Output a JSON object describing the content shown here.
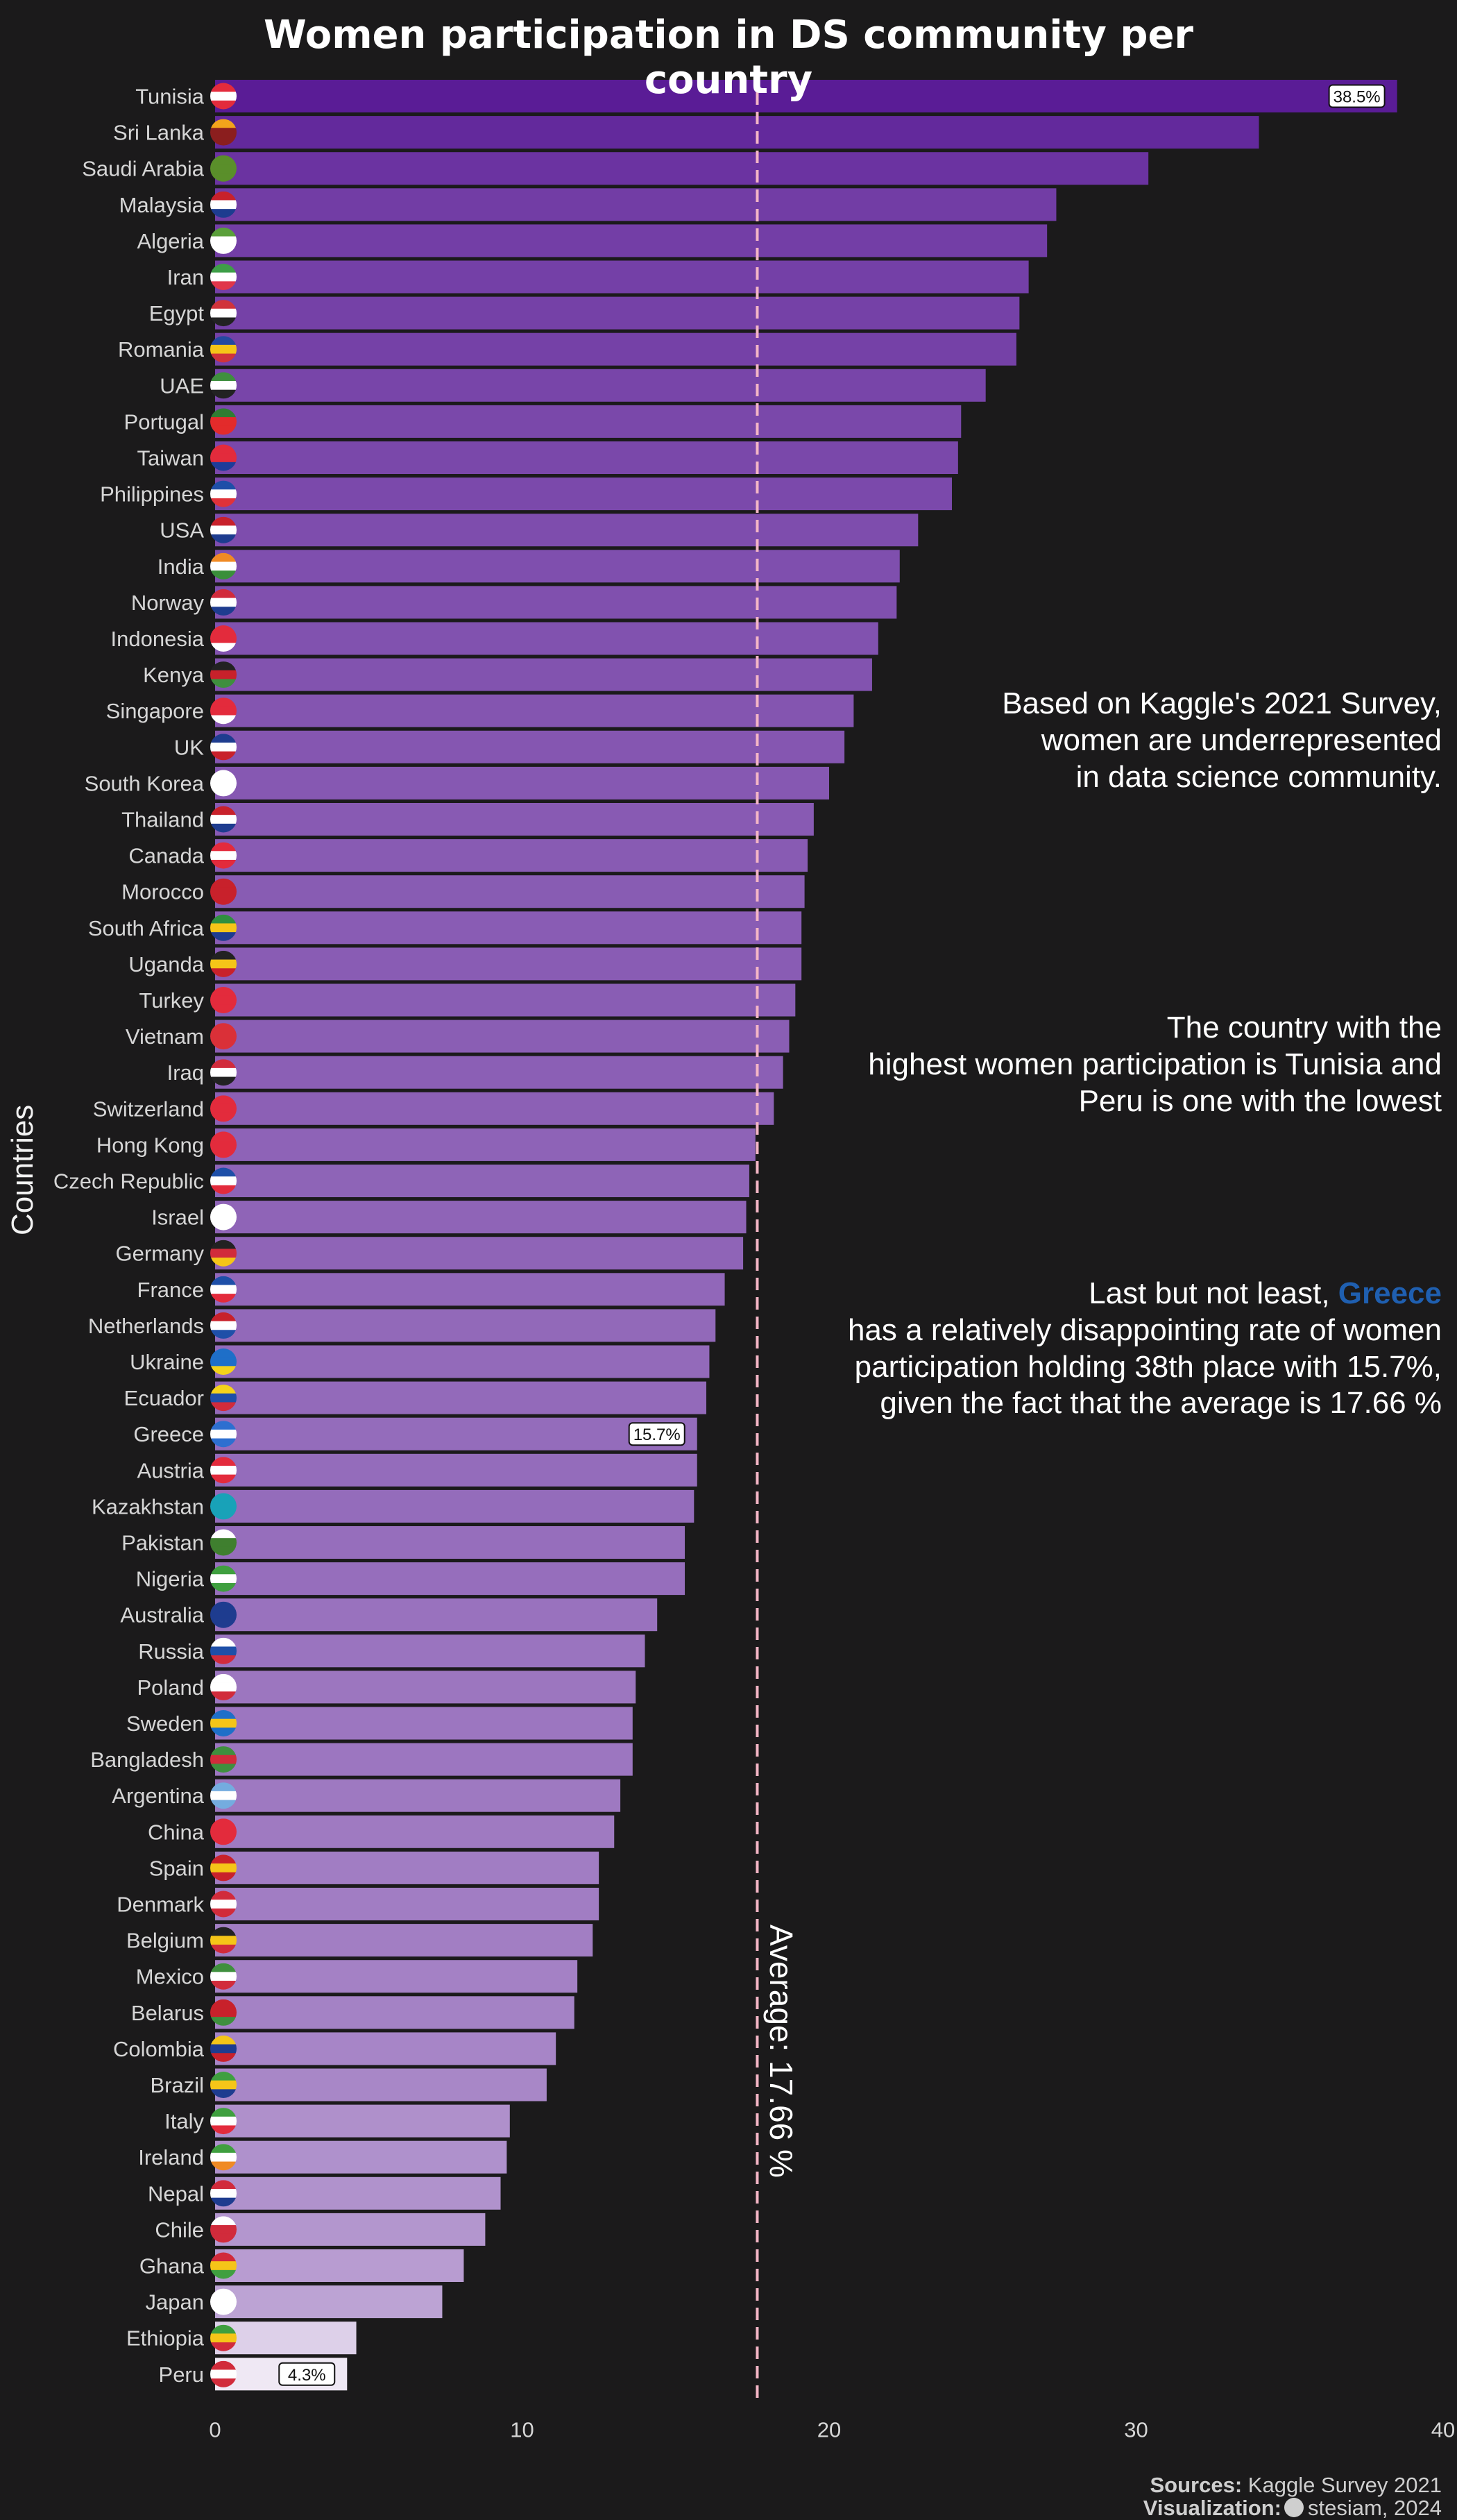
{
  "chart_data": {
    "type": "bar",
    "orientation": "horizontal",
    "title": "Women participation in DS community per country",
    "xlabel": "",
    "ylabel": "Countries",
    "xlim": [
      0,
      40
    ],
    "xticks": [
      0,
      10,
      20,
      30,
      40
    ],
    "grid": false,
    "categories": [
      "Tunisia",
      "Sri Lanka",
      "Saudi Arabia",
      "Malaysia",
      "Algeria",
      "Iran",
      "Egypt",
      "Romania",
      "UAE",
      "Portugal",
      "Taiwan",
      "Philippines",
      "USA",
      "India",
      "Norway",
      "Indonesia",
      "Kenya",
      "Singapore",
      "UK",
      "South Korea",
      "Thailand",
      "Canada",
      "Morocco",
      "South Africa",
      "Uganda",
      "Turkey",
      "Vietnam",
      "Iraq",
      "Switzerland",
      "Hong Kong",
      "Czech Republic",
      "Israel",
      "Germany",
      "France",
      "Netherlands",
      "Ukraine",
      "Ecuador",
      "Greece",
      "Austria",
      "Kazakhstan",
      "Pakistan",
      "Nigeria",
      "Australia",
      "Russia",
      "Poland",
      "Sweden",
      "Bangladesh",
      "Argentina",
      "China",
      "Spain",
      "Denmark",
      "Belgium",
      "Mexico",
      "Belarus",
      "Colombia",
      "Brazil",
      "Italy",
      "Ireland",
      "Nepal",
      "Chile",
      "Ghana",
      "Japan",
      "Ethiopia",
      "Peru"
    ],
    "values": [
      38.5,
      34.0,
      30.4,
      27.4,
      27.1,
      26.5,
      26.2,
      26.1,
      25.1,
      24.3,
      24.2,
      24.0,
      22.9,
      22.3,
      22.2,
      21.6,
      21.4,
      20.8,
      20.5,
      20.0,
      19.5,
      19.3,
      19.2,
      19.1,
      19.1,
      18.9,
      18.7,
      18.5,
      18.2,
      17.6,
      17.4,
      17.3,
      17.2,
      16.6,
      16.3,
      16.1,
      16.0,
      15.7,
      15.7,
      15.6,
      15.3,
      15.3,
      14.4,
      14.0,
      13.7,
      13.6,
      13.6,
      13.2,
      13.0,
      12.5,
      12.5,
      12.3,
      11.8,
      11.7,
      11.1,
      10.8,
      9.6,
      9.5,
      9.3,
      8.8,
      8.1,
      7.4,
      4.6,
      4.3
    ],
    "value_labels": {
      "Tunisia": "38.5%",
      "Greece": "15.7%",
      "Peru": "4.3%"
    },
    "average": 17.66,
    "average_label": "Average: 17.66 %",
    "flags": [
      [
        "#e32b3c",
        "#ffffff",
        "#e32b3c"
      ],
      [
        "#f2a41b",
        "#8b1e1e",
        "#8b1e1e"
      ],
      [
        "#5a8f2a",
        "#5a8f2a",
        "#5a8f2a"
      ],
      [
        "#c8212b",
        "#ffffff",
        "#1d3c8f"
      ],
      [
        "#5a9f3a",
        "#ffffff",
        "#ffffff"
      ],
      [
        "#3e9e48",
        "#ffffff",
        "#e0364a"
      ],
      [
        "#d0333b",
        "#ffffff",
        "#222222"
      ],
      [
        "#2449a0",
        "#f5c518",
        "#d0333b"
      ],
      [
        "#3f8f3e",
        "#ffffff",
        "#222222"
      ],
      [
        "#2f7d32",
        "#e32b2b",
        "#e32b2b"
      ],
      [
        "#e32b3c",
        "#e32b3c",
        "#1e3c9a"
      ],
      [
        "#1e4fa8",
        "#ffffff",
        "#e0323a"
      ],
      [
        "#c8212b",
        "#ffffff",
        "#1d3c8f"
      ],
      [
        "#f08a24",
        "#ffffff",
        "#3a8f3a"
      ],
      [
        "#d12b3b",
        "#ffffff",
        "#1e3c8f"
      ],
      [
        "#e32b3c",
        "#e32b3c",
        "#ffffff"
      ],
      [
        "#222222",
        "#c8212b",
        "#3f8f3e"
      ],
      [
        "#e32b3c",
        "#e32b3c",
        "#ffffff"
      ],
      [
        "#1e3c8f",
        "#ffffff",
        "#c8212b"
      ],
      [
        "#ffffff",
        "#ffffff",
        "#ffffff"
      ],
      [
        "#c8212b",
        "#ffffff",
        "#1e3c8f"
      ],
      [
        "#e32b3c",
        "#ffffff",
        "#e32b3c"
      ],
      [
        "#c8212b",
        "#c8212b",
        "#c8212b"
      ],
      [
        "#2f8f3f",
        "#f5c518",
        "#1e3c8f"
      ],
      [
        "#222222",
        "#f5c518",
        "#c8212b"
      ],
      [
        "#e32b3c",
        "#e32b3c",
        "#e32b3c"
      ],
      [
        "#da3038",
        "#da3038",
        "#da3038"
      ],
      [
        "#d12b3b",
        "#ffffff",
        "#222222"
      ],
      [
        "#e32b3c",
        "#e32b3c",
        "#e32b3c"
      ],
      [
        "#e32b3c",
        "#e32b3c",
        "#e32b3c"
      ],
      [
        "#1e4fa8",
        "#ffffff",
        "#e32b3c"
      ],
      [
        "#ffffff",
        "#ffffff",
        "#ffffff"
      ],
      [
        "#222222",
        "#d12b3b",
        "#f5c518"
      ],
      [
        "#1e4fa8",
        "#ffffff",
        "#e32b3c"
      ],
      [
        "#c8212b",
        "#ffffff",
        "#1e4fa8"
      ],
      [
        "#1e6fc8",
        "#1e6fc8",
        "#f5d31b"
      ],
      [
        "#f5d31b",
        "#1e4fa8",
        "#d12b3b"
      ],
      [
        "#2d6fd0",
        "#ffffff",
        "#2d6fd0"
      ],
      [
        "#e32b3c",
        "#ffffff",
        "#e32b3c"
      ],
      [
        "#18a2b8",
        "#18a2b8",
        "#18a2b8"
      ],
      [
        "#ffffff",
        "#3f7f2f",
        "#3f7f2f"
      ],
      [
        "#3f9f3f",
        "#ffffff",
        "#3f9f3f"
      ],
      [
        "#1e3c8f",
        "#1e3c8f",
        "#1e3c8f"
      ],
      [
        "#ffffff",
        "#1e4fa8",
        "#d12b3b"
      ],
      [
        "#ffffff",
        "#ffffff",
        "#d12b3b"
      ],
      [
        "#1e6fc8",
        "#f5c518",
        "#1e6fc8"
      ],
      [
        "#3f8f3e",
        "#d12b3b",
        "#3f8f3e"
      ],
      [
        "#74acdf",
        "#ffffff",
        "#74acdf"
      ],
      [
        "#e32b3c",
        "#e32b3c",
        "#e32b3c"
      ],
      [
        "#c8212b",
        "#f5c518",
        "#c8212b"
      ],
      [
        "#d12b3b",
        "#ffffff",
        "#d12b3b"
      ],
      [
        "#222222",
        "#f5c518",
        "#d12b3b"
      ],
      [
        "#3f8f3e",
        "#ffffff",
        "#d12b3b"
      ],
      [
        "#c8212b",
        "#c8212b",
        "#3f8f3e"
      ],
      [
        "#f5c518",
        "#1e3c8f",
        "#c8212b"
      ],
      [
        "#3f9f3f",
        "#f5c518",
        "#1e3c8f"
      ],
      [
        "#3f9f3f",
        "#ffffff",
        "#e32b3c"
      ],
      [
        "#3f9f3f",
        "#ffffff",
        "#f08a24"
      ],
      [
        "#d12b3b",
        "#ffffff",
        "#1e3c8f"
      ],
      [
        "#ffffff",
        "#d12b3b",
        "#d12b3b"
      ],
      [
        "#d12b3b",
        "#f5c518",
        "#3f9f3f"
      ],
      [
        "#ffffff",
        "#ffffff",
        "#ffffff"
      ],
      [
        "#3f9f3f",
        "#f5c518",
        "#d12b3b"
      ],
      [
        "#d12b3b",
        "#ffffff",
        "#d12b3b"
      ]
    ]
  },
  "annotations": {
    "survey": "Based on Kaggle's 2021 Survey,\nwomen are underrepresented\nin data science community.",
    "highest": "The country with the\nhighest women participation is Tunisia and\nPeru is one with the lowest",
    "greece_prefix": "Last but not least, ",
    "greece_highlight": "Greece",
    "greece_line2": "has a relatively disappointing rate of women",
    "greece_line3": "participation holding 38th place with 15.7%,",
    "greece_line4": "given the fact that the average is 17.66 %"
  },
  "footer": {
    "sources_label": "Sources:",
    "sources_value": "Kaggle Survey 2021",
    "viz_label": "Visualization:",
    "viz_value": "stesiam, 2024"
  },
  "colors": {
    "background": "#1b1a1b",
    "bar_high": "#5a1c96",
    "bar_low": "#efe8f4",
    "average_line": "#f4b6c6",
    "highlight": "#1f5fb0"
  }
}
